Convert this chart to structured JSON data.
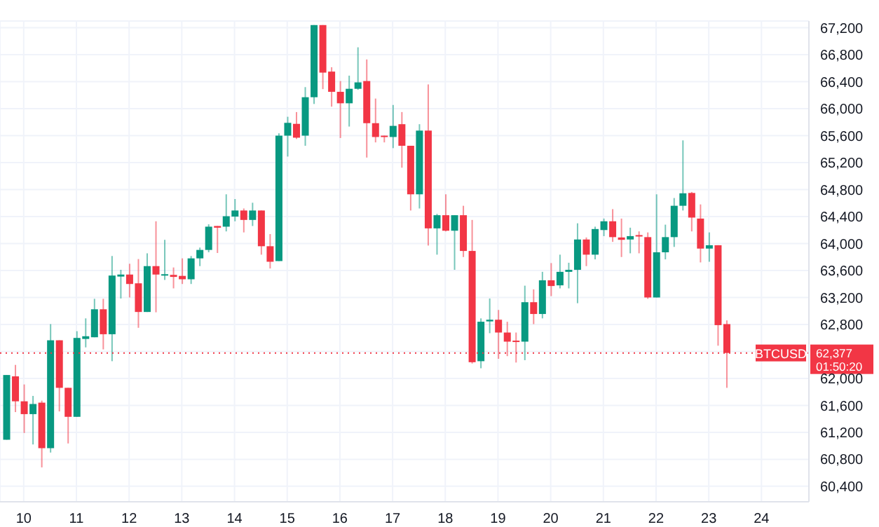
{
  "chart_data": {
    "type": "candlestick",
    "x": [
      9.6667,
      9.8333,
      10,
      10.1667,
      10.3333,
      10.5,
      10.6667,
      10.8333,
      11,
      11.1667,
      11.3333,
      11.5,
      11.6667,
      11.8333,
      12,
      12.1667,
      12.3333,
      12.5,
      12.6667,
      12.8333,
      13,
      13.1667,
      13.3333,
      13.5,
      13.6667,
      13.8333,
      14,
      14.1667,
      14.3333,
      14.5,
      14.6667,
      14.8333,
      15,
      15.1667,
      15.3333,
      15.5,
      15.6667,
      15.8333,
      16,
      16.1667,
      16.3333,
      16.5,
      16.6667,
      16.8333,
      17,
      17.1667,
      17.3333,
      17.5,
      17.6667,
      17.8333,
      18,
      18.1667,
      18.3333,
      18.5,
      18.6667,
      18.8333,
      19,
      19.1667,
      19.3333,
      19.5,
      19.6667,
      19.8333,
      20,
      20.1667,
      20.3333,
      20.5,
      20.6667,
      20.8333,
      21,
      21.1667,
      21.3333,
      21.5,
      21.6667,
      21.8333,
      22,
      22.1667,
      22.3333,
      22.5,
      22.6667,
      22.8333,
      23,
      23.1667,
      23.3333
    ],
    "ohlc": [
      [
        61090,
        62050,
        61090,
        62050
      ],
      [
        62030,
        62200,
        61500,
        61660
      ],
      [
        61660,
        61910,
        61190,
        61470
      ],
      [
        61470,
        61740,
        61020,
        61620
      ],
      [
        61640,
        61670,
        60680,
        60965
      ],
      [
        60965,
        62805,
        60900,
        62565
      ],
      [
        62565,
        62565,
        61510,
        61860
      ],
      [
        61860,
        61860,
        61035,
        61430
      ],
      [
        61430,
        62700,
        61430,
        62600
      ],
      [
        62585,
        62890,
        62460,
        62625
      ],
      [
        62610,
        63180,
        62610,
        63025
      ],
      [
        63025,
        63180,
        62430,
        62655
      ],
      [
        62655,
        63815,
        62255,
        63525
      ],
      [
        63510,
        63610,
        63185,
        63540
      ],
      [
        63540,
        63700,
        63200,
        63400
      ],
      [
        63410,
        63770,
        62750,
        62985
      ],
      [
        62985,
        63855,
        62985,
        63665
      ],
      [
        63665,
        64330,
        62980,
        63540
      ],
      [
        63530,
        64055,
        63460,
        63545
      ],
      [
        63535,
        63645,
        63335,
        63505
      ],
      [
        63520,
        63780,
        63400,
        63470
      ],
      [
        63470,
        63815,
        63400,
        63780
      ],
      [
        63780,
        63940,
        63665,
        63905
      ],
      [
        63905,
        64285,
        63870,
        64250
      ],
      [
        64260,
        64260,
        63860,
        64235
      ],
      [
        64250,
        64730,
        64180,
        64405
      ],
      [
        64400,
        64660,
        64330,
        64490
      ],
      [
        64490,
        64520,
        64165,
        64350
      ],
      [
        64350,
        64605,
        64260,
        64490
      ],
      [
        64490,
        64490,
        63835,
        63960
      ],
      [
        63960,
        64140,
        63630,
        63730
      ],
      [
        63740,
        65635,
        63740,
        65600
      ],
      [
        65600,
        65880,
        65290,
        65790
      ],
      [
        65775,
        65950,
        65550,
        65570
      ],
      [
        65600,
        66320,
        65450,
        66170
      ],
      [
        66170,
        67240,
        66070,
        67240
      ],
      [
        67240,
        67240,
        66290,
        66535
      ],
      [
        66550,
        66615,
        66030,
        66250
      ],
      [
        66250,
        66410,
        65565,
        66080
      ],
      [
        66080,
        66490,
        65735,
        66295
      ],
      [
        66295,
        66910,
        66280,
        66390
      ],
      [
        66410,
        66730,
        65275,
        65785
      ],
      [
        65785,
        66150,
        65500,
        65580
      ],
      [
        65600,
        65600,
        65500,
        65580
      ],
      [
        65580,
        66055,
        65415,
        65745
      ],
      [
        65770,
        65950,
        65125,
        65450
      ],
      [
        65450,
        65450,
        64490,
        64730
      ],
      [
        64730,
        65770,
        64520,
        65675
      ],
      [
        65675,
        66360,
        63970,
        64225
      ],
      [
        64225,
        64440,
        63835,
        64420
      ],
      [
        64420,
        64730,
        64180,
        64190
      ],
      [
        64190,
        64420,
        63610,
        64420
      ],
      [
        64420,
        64560,
        63800,
        63890
      ],
      [
        63890,
        64350,
        62220,
        62240
      ],
      [
        62255,
        62890,
        62150,
        62840
      ],
      [
        62845,
        63185,
        62670,
        62870
      ],
      [
        62870,
        63015,
        62290,
        62680
      ],
      [
        62680,
        62840,
        62330,
        62545
      ],
      [
        62560,
        62680,
        62235,
        62545
      ],
      [
        62545,
        63375,
        62270,
        63130
      ],
      [
        63130,
        63320,
        62805,
        62955
      ],
      [
        62955,
        63580,
        62890,
        63455
      ],
      [
        63455,
        63710,
        63220,
        63370
      ],
      [
        63380,
        63835,
        63335,
        63580
      ],
      [
        63580,
        63715,
        63335,
        63610
      ],
      [
        63610,
        64300,
        63115,
        64060
      ],
      [
        64060,
        64090,
        63665,
        63835
      ],
      [
        63835,
        64250,
        63765,
        64215
      ],
      [
        64200,
        64370,
        64110,
        64330
      ],
      [
        64330,
        64510,
        64025,
        64095
      ],
      [
        64090,
        64370,
        63800,
        64055
      ],
      [
        64060,
        64235,
        63855,
        64110
      ],
      [
        64125,
        64180,
        63855,
        64110
      ],
      [
        64095,
        64165,
        63180,
        63200
      ],
      [
        63200,
        64730,
        63200,
        63870
      ],
      [
        63870,
        64280,
        63765,
        64095
      ],
      [
        64095,
        64675,
        63950,
        64560
      ],
      [
        64560,
        65530,
        64490,
        64745
      ],
      [
        64750,
        64765,
        64180,
        64385
      ],
      [
        64370,
        64580,
        63720,
        63925
      ],
      [
        63925,
        64165,
        63730,
        63975
      ],
      [
        63975,
        63975,
        62485,
        62790
      ],
      [
        62805,
        62860,
        61860,
        62377
      ]
    ],
    "colors": [
      "#089981",
      "#f23645",
      "#f23645",
      "#089981",
      "#f23645",
      "#089981",
      "#f23645",
      "#f23645",
      "#089981",
      "#089981",
      "#089981",
      "#f23645",
      "#089981",
      "#089981",
      "#f23645",
      "#f23645",
      "#089981",
      "#f23645",
      "#089981",
      "#f23645",
      "#f23645",
      "#089981",
      "#089981",
      "#089981",
      "#f23645",
      "#089981",
      "#089981",
      "#f23645",
      "#089981",
      "#f23645",
      "#f23645",
      "#089981",
      "#089981",
      "#f23645",
      "#089981",
      "#089981",
      "#f23645",
      "#f23645",
      "#f23645",
      "#089981",
      "#089981",
      "#f23645",
      "#f23645",
      "#f23645",
      "#089981",
      "#f23645",
      "#f23645",
      "#089981",
      "#f23645",
      "#089981",
      "#f23645",
      "#089981",
      "#f23645",
      "#f23645",
      "#089981",
      "#089981",
      "#f23645",
      "#f23645",
      "#f23645",
      "#089981",
      "#f23645",
      "#089981",
      "#f23645",
      "#089981",
      "#089981",
      "#089981",
      "#f23645",
      "#089981",
      "#089981",
      "#f23645",
      "#f23645",
      "#089981",
      "#f23645",
      "#f23645",
      "#089981",
      "#089981",
      "#089981",
      "#089981",
      "#f23645",
      "#f23645",
      "#089981",
      "#f23645",
      "#f23645"
    ],
    "xlim": [
      9.55,
      24.9
    ],
    "xticks": [
      10,
      11,
      12,
      13,
      14,
      15,
      16,
      17,
      18,
      19,
      20,
      21,
      22,
      23,
      24
    ],
    "ylim": [
      60170,
      67300
    ],
    "yticks": [
      {
        "value": 60400,
        "label": "60,400"
      },
      {
        "value": 60800,
        "label": "60,800"
      },
      {
        "value": 61200,
        "label": "61,200"
      },
      {
        "value": 61600,
        "label": "61,600"
      },
      {
        "value": 62000,
        "label": "62,000"
      },
      {
        "value": 62400,
        "label": null
      },
      {
        "value": 62800,
        "label": "62,800"
      },
      {
        "value": 63200,
        "label": "63,200"
      },
      {
        "value": 63600,
        "label": "63,600"
      },
      {
        "value": 64000,
        "label": "64,000"
      },
      {
        "value": 64400,
        "label": "64,400"
      },
      {
        "value": 64800,
        "label": "64,800"
      },
      {
        "value": 65200,
        "label": "65,200"
      },
      {
        "value": 65600,
        "label": "65,600"
      },
      {
        "value": 66000,
        "label": "66,000"
      },
      {
        "value": 66400,
        "label": "66,400"
      },
      {
        "value": 66800,
        "label": "66,800"
      },
      {
        "value": 67200,
        "label": "67,200"
      }
    ],
    "grid": true,
    "ref_lines": [
      {
        "axis": "y",
        "value": 62377,
        "label": "BTCUSD",
        "color": "#f23645",
        "line_style": "dotted"
      }
    ],
    "annotations": [
      "62,377",
      "01:50:20"
    ]
  }
}
